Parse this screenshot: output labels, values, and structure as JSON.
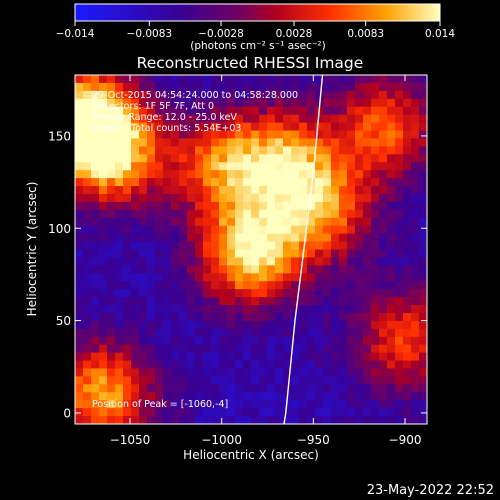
{
  "chart_data": {
    "type": "heatmap",
    "title": "Reconstructed RHESSI Image",
    "xlabel": "Heliocentric X (arcsec)",
    "ylabel": "Heliocentric Y (arcsec)",
    "xlim": [
      -1080,
      -888
    ],
    "ylim": [
      -6,
      183
    ],
    "xticks": [
      -1050,
      -1000,
      -950,
      -900
    ],
    "xtick_labels": [
      "−1050",
      "−1000",
      "−950",
      "−900"
    ],
    "yticks": [
      0,
      50,
      100,
      150
    ],
    "ytick_labels": [
      "0",
      "50",
      "100",
      "150"
    ],
    "colorbar": {
      "range": [
        -0.014,
        0.014
      ],
      "ticks": [
        -0.014,
        -0.0083,
        -0.0028,
        0.0028,
        0.0083,
        0.014
      ],
      "tick_labels": [
        "−0.014",
        "−0.0083",
        "−0.0028",
        "0.0028",
        "0.0083",
        "0.014"
      ],
      "unit_label": "(photons cm⁻² s⁻¹ asec⁻²)"
    },
    "colors": [
      "#2020ff",
      "#3a0080",
      "#8a0040",
      "#ff2a00",
      "#ffaa00",
      "#ffffa0"
    ],
    "sources": [
      {
        "x": -1076,
        "y": 160,
        "value": 0.014
      },
      {
        "x": -1060,
        "y": 140,
        "value": 0.011
      },
      {
        "x": -1000,
        "y": 134,
        "value": 0.0075
      },
      {
        "x": -965,
        "y": 138,
        "value": 0.0075
      },
      {
        "x": -985,
        "y": 86,
        "value": 0.014
      },
      {
        "x": -945,
        "y": 110,
        "value": 0.0085
      },
      {
        "x": -910,
        "y": 155,
        "value": 0.007
      },
      {
        "x": -900,
        "y": 40,
        "value": 0.006
      },
      {
        "x": -1065,
        "y": 10,
        "value": 0.011
      }
    ],
    "limb_line": [
      [
        -945,
        183
      ],
      [
        -950,
        130
      ],
      [
        -955,
        90
      ],
      [
        -960,
        50
      ],
      [
        -965,
        0
      ],
      [
        -966,
        -6
      ]
    ],
    "annotations": {
      "line1": "29-Oct-2015 04:54:24.000 to 04:58:28.000",
      "line2": "Detectors: 1F 5F 7F, Att 0",
      "line3": "Energy Range: 12.0 - 25.0 keV",
      "line4": "Clean    Total counts: 5.54E+03",
      "peak": "Position of Peak = [-1060,-4]"
    },
    "timestamp": "23-May-2022 22:52"
  }
}
